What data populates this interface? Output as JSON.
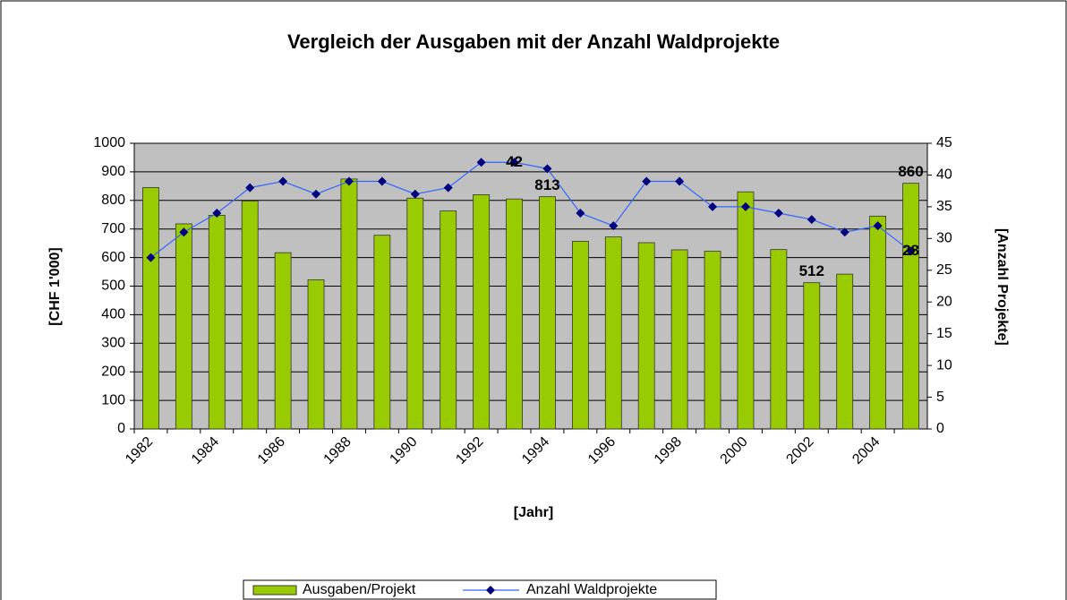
{
  "chart_data": {
    "type": "bar_line",
    "title": "Vergleich der Ausgaben mit der Anzahl Waldprojekte",
    "xlabel": "[Jahr]",
    "ylabel": "[CHF 1'000]",
    "y2label": "[Anzahl Projekte]",
    "categories": [
      "1982",
      null,
      "1984",
      null,
      "1986",
      null,
      "1988",
      null,
      "1990",
      null,
      "1992",
      null,
      "1994",
      null,
      "1996",
      null,
      "1998",
      null,
      "2000",
      null,
      "2002",
      null,
      "2004",
      null
    ],
    "series": [
      {
        "name": "Ausgaben/Projekt",
        "type": "bar",
        "color": "#99cc00",
        "values": [
          845,
          718,
          748,
          798,
          617,
          522,
          875,
          678,
          808,
          763,
          820,
          805,
          813,
          657,
          672,
          652,
          627,
          622,
          830,
          628,
          512,
          542,
          745,
          860
        ],
        "value_labels": [
          null,
          null,
          null,
          null,
          null,
          null,
          null,
          null,
          null,
          null,
          null,
          null,
          "813",
          null,
          null,
          null,
          null,
          null,
          null,
          null,
          "512",
          null,
          null,
          "860"
        ]
      },
      {
        "name": "Anzahl Waldprojekte",
        "type": "line",
        "axis": "y2",
        "color": "#3366ff",
        "marker_color": "#000080",
        "values": [
          27,
          31,
          34,
          38,
          39,
          37,
          39,
          39,
          37,
          38,
          42,
          42,
          41,
          34,
          32,
          39,
          39,
          35,
          35,
          34,
          33,
          31,
          32,
          28
        ],
        "value_labels": [
          null,
          null,
          null,
          null,
          null,
          null,
          null,
          null,
          null,
          null,
          null,
          "42",
          null,
          null,
          null,
          null,
          null,
          null,
          null,
          null,
          null,
          null,
          null,
          "28"
        ]
      }
    ],
    "ylim": [
      0,
      1000
    ],
    "yticks": [
      0,
      100,
      200,
      300,
      400,
      500,
      600,
      700,
      800,
      900,
      1000
    ],
    "y2lim": [
      0,
      45
    ],
    "y2ticks": [
      0,
      5,
      10,
      15,
      20,
      25,
      30,
      35,
      40,
      45
    ],
    "grid": true,
    "legend": "bottom"
  }
}
